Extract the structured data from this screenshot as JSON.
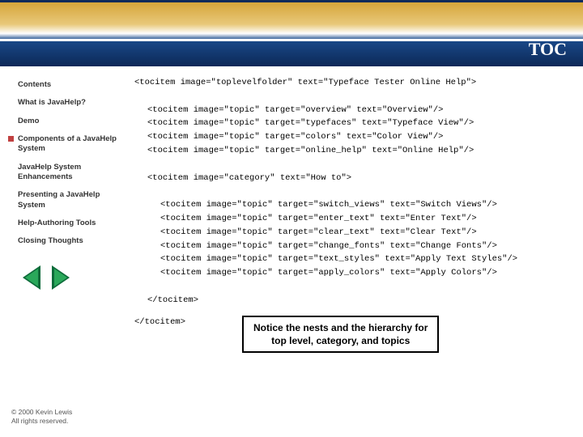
{
  "header": {
    "title": "TOC"
  },
  "sidebar": {
    "items": [
      {
        "label": "Contents",
        "active": false
      },
      {
        "label": "What is JavaHelp?",
        "active": false
      },
      {
        "label": "Demo",
        "active": false
      },
      {
        "label": "Components of a JavaHelp System",
        "active": true
      },
      {
        "label": "JavaHelp System Enhancements",
        "active": false
      },
      {
        "label": "Presenting a JavaHelp System",
        "active": false
      },
      {
        "label": "Help-Authoring Tools",
        "active": false
      },
      {
        "label": "Closing Thoughts",
        "active": false
      }
    ]
  },
  "code": {
    "lines": [
      {
        "text": "<tocitem image=\"toplevelfolder\" text=\"Typeface Tester Online Help\">",
        "indent": 0
      },
      {
        "text": " ",
        "indent": 0
      },
      {
        "text": "<tocitem image=\"topic\" target=\"overview\" text=\"Overview\"/>",
        "indent": 1
      },
      {
        "text": "<tocitem image=\"topic\" target=\"typefaces\" text=\"Typeface View\"/>",
        "indent": 1
      },
      {
        "text": "<tocitem image=\"topic\" target=\"colors\" text=\"Color View\"/>",
        "indent": 1
      },
      {
        "text": "<tocitem image=\"topic\" target=\"online_help\" text=\"Online Help\"/>",
        "indent": 1
      },
      {
        "text": " ",
        "indent": 0
      },
      {
        "text": "<tocitem image=\"category\" text=\"How to\">",
        "indent": 1
      },
      {
        "text": " ",
        "indent": 0
      },
      {
        "text": "<tocitem image=\"topic\" target=\"switch_views\" text=\"Switch Views\"/>",
        "indent": 2
      },
      {
        "text": "<tocitem image=\"topic\" target=\"enter_text\" text=\"Enter Text\"/>",
        "indent": 2
      },
      {
        "text": "<tocitem image=\"topic\" target=\"clear_text\" text=\"Clear Text\"/>",
        "indent": 2
      },
      {
        "text": "<tocitem image=\"topic\" target=\"change_fonts\" text=\"Change Fonts\"/>",
        "indent": 2
      },
      {
        "text": "<tocitem image=\"topic\" target=\"text_styles\" text=\"Apply Text Styles\"/>",
        "indent": 2
      },
      {
        "text": "<tocitem image=\"topic\" target=\"apply_colors\" text=\"Apply Colors\"/>",
        "indent": 2
      },
      {
        "text": " ",
        "indent": 0
      },
      {
        "text": "</tocitem>",
        "indent": 1
      }
    ],
    "closing": "</tocitem>"
  },
  "callout": {
    "line1": "Notice the nests and the hierarchy for",
    "line2": "top level, category, and topics"
  },
  "footer": {
    "line1": "© 2000 Kevin Lewis",
    "line2": "All rights reserved."
  }
}
